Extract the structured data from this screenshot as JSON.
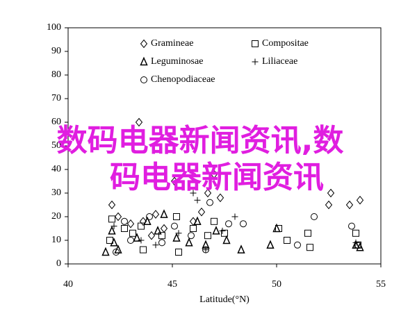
{
  "chart_data": {
    "type": "scatter",
    "x_label": "Latitude(°N)",
    "xlim": [
      40,
      55
    ],
    "xticks": [
      40,
      45,
      50,
      55
    ],
    "ylim": [
      0,
      100
    ],
    "yticks": [
      0,
      10,
      20,
      30,
      40,
      50,
      60,
      70,
      80,
      90,
      100
    ],
    "annotations": [
      "数码电器新闻资讯,数",
      "码电器新闻资讯"
    ],
    "annotation_color": "#e01ee0",
    "series": [
      {
        "name": "Gramineae",
        "marker": "diamond",
        "color": "#000000",
        "x": [
          42.1,
          42.4,
          43.0,
          43.4,
          43.6,
          44.2,
          44.6,
          45.1,
          46.4,
          46.7,
          47.0,
          47.3,
          53.5,
          54.0,
          52.6,
          52.5,
          46.0,
          44.0
        ],
        "values": [
          25,
          20,
          17,
          60,
          18,
          21,
          15,
          35,
          22,
          30,
          38,
          28,
          25,
          27,
          30,
          25,
          18,
          12
        ]
      },
      {
        "name": "Compositae",
        "marker": "square",
        "color": "#000000",
        "x": [
          42.0,
          42.1,
          42.7,
          43.1,
          43.5,
          43.6,
          44.5,
          45.2,
          45.3,
          46.0,
          46.7,
          47.0,
          47.5,
          50.1,
          50.5,
          51.5,
          51.6,
          53.8,
          53.9
        ],
        "values": [
          10,
          19,
          15,
          13,
          16,
          6,
          12,
          20,
          5,
          15,
          12,
          18,
          13,
          15,
          10,
          13,
          7,
          13,
          8
        ]
      },
      {
        "name": "Leguminosae",
        "marker": "triangle",
        "color": "#000000",
        "x": [
          41.8,
          42.1,
          42.2,
          42.4,
          43.3,
          43.8,
          44.3,
          44.6,
          45.2,
          45.8,
          46.2,
          46.6,
          47.1,
          47.6,
          48.3,
          49.7,
          50.0,
          53.8,
          54.0
        ],
        "values": [
          5,
          14,
          9,
          6,
          11,
          18,
          14,
          21,
          11,
          9,
          18,
          8,
          14,
          10,
          6,
          8,
          15,
          8,
          7
        ]
      },
      {
        "name": "Liliaceae",
        "marker": "plus",
        "color": "#000000",
        "x": [
          42.2,
          43.5,
          44.2,
          45.3,
          46.2,
          46.6,
          46.0,
          47.4,
          48.0,
          53.8
        ],
        "values": [
          16,
          10,
          8,
          13,
          27,
          6,
          30,
          14,
          20,
          9
        ]
      },
      {
        "name": "Chenopodiaceae",
        "marker": "circle",
        "color": "#000000",
        "x": [
          42.3,
          42.7,
          43.0,
          43.9,
          44.5,
          45.1,
          45.9,
          46.6,
          46.8,
          47.7,
          48.4,
          51.0,
          51.8,
          53.6,
          53.9
        ],
        "values": [
          5,
          18,
          10,
          20,
          9,
          16,
          12,
          6,
          26,
          17,
          17,
          8,
          20,
          16,
          8
        ]
      }
    ]
  }
}
